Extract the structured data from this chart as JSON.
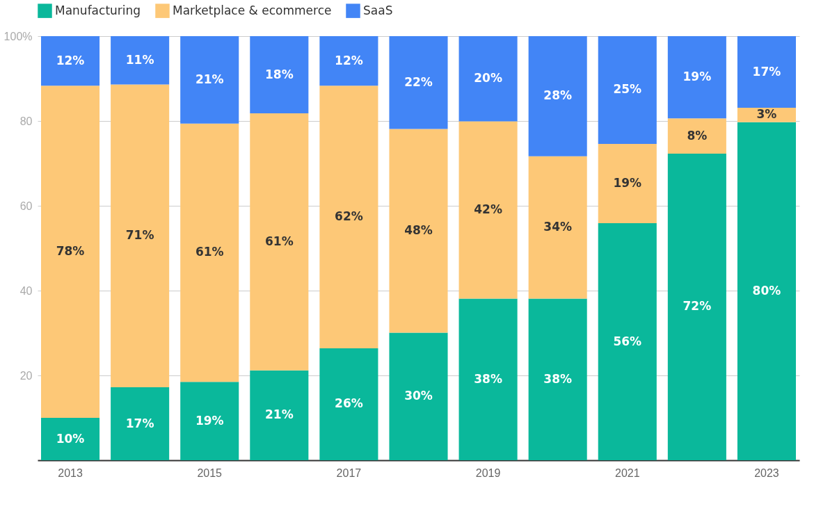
{
  "chart_data": {
    "type": "bar",
    "stacked": true,
    "categories": [
      "2013",
      null,
      "2015",
      null,
      "2017",
      null,
      "2019",
      null,
      "2021",
      null,
      "2023"
    ],
    "series": [
      {
        "name": "Manufacturing",
        "color": "#0ab89b",
        "values": [
          10.0,
          17.2,
          18.5,
          21.2,
          26.4,
          30.1,
          38.1,
          38.1,
          55.9,
          72.3,
          79.7
        ],
        "value_labels": [
          "10%",
          "17%",
          "19%",
          "21%",
          "26%",
          "30%",
          "38%",
          "38%",
          "56%",
          "72%",
          "80%"
        ]
      },
      {
        "name": "Marketplace & ecommerce",
        "color": "#fdc877",
        "values": [
          78.3,
          71.4,
          60.9,
          60.6,
          61.9,
          48.0,
          41.8,
          33.6,
          18.7,
          8.3,
          3.4
        ],
        "value_labels": [
          "78%",
          "71%",
          "61%",
          "61%",
          "62%",
          "48%",
          "42%",
          "34%",
          "19%",
          "8%",
          "3%"
        ]
      },
      {
        "name": "SaaS",
        "color": "#4285f6",
        "values": [
          11.7,
          11.4,
          20.6,
          18.2,
          11.7,
          21.9,
          20.1,
          28.3,
          25.4,
          19.4,
          16.9
        ],
        "value_labels": [
          "12%",
          "11%",
          "21%",
          "18%",
          "12%",
          "22%",
          "20%",
          "28%",
          "25%",
          "19%",
          "17%"
        ]
      }
    ],
    "ylim": [
      0,
      100
    ],
    "yticks": [
      20,
      40,
      60,
      80,
      {
        "value": 100,
        "label": "100%"
      }
    ],
    "grid": "y",
    "legend": "top left"
  }
}
